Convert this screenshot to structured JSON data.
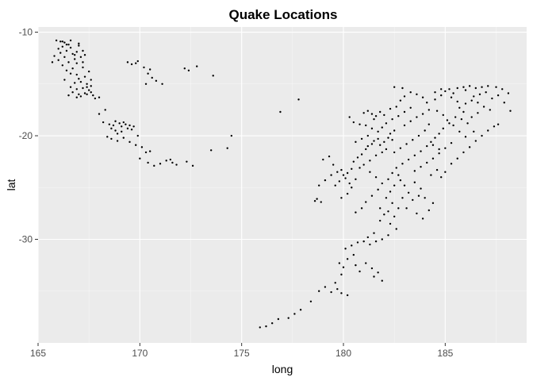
{
  "chart_data": {
    "type": "scatter",
    "title": "Quake Locations",
    "xlabel": "long",
    "ylabel": "lat",
    "xlim": [
      165,
      189
    ],
    "ylim": [
      -40,
      -9.5
    ],
    "x_ticks": [
      165,
      170,
      175,
      180,
      185
    ],
    "y_ticks": [
      -10,
      -20,
      -30
    ],
    "x_tick_labels": [
      "165",
      "170",
      "175",
      "180",
      "185"
    ],
    "y_tick_labels": [
      "-10",
      "-20",
      "-30"
    ],
    "grid": true,
    "legend": "none",
    "colors": {
      "panel": "#ebebeb",
      "point": "#000000",
      "grid": "#ffffff"
    },
    "points": [
      [
        165.9,
        -10.8
      ],
      [
        166.1,
        -10.9
      ],
      [
        166.3,
        -11.0
      ],
      [
        166.5,
        -11.2
      ],
      [
        166.2,
        -11.4
      ],
      [
        166.0,
        -11.6
      ],
      [
        166.6,
        -11.5
      ],
      [
        166.4,
        -11.8
      ],
      [
        166.1,
        -12.0
      ],
      [
        166.7,
        -12.1
      ],
      [
        165.8,
        -12.3
      ],
      [
        166.3,
        -12.4
      ],
      [
        166.0,
        -12.7
      ],
      [
        166.8,
        -12.6
      ],
      [
        166.5,
        -12.9
      ],
      [
        165.7,
        -12.9
      ],
      [
        166.2,
        -13.2
      ],
      [
        166.9,
        -13.0
      ],
      [
        167.0,
        -11.3
      ],
      [
        166.9,
        -11.9
      ],
      [
        167.1,
        -12.4
      ],
      [
        167.2,
        -11.8
      ],
      [
        166.7,
        -13.5
      ],
      [
        166.4,
        -13.7
      ],
      [
        166.6,
        -14.0
      ],
      [
        166.9,
        -14.1
      ],
      [
        167.2,
        -13.4
      ],
      [
        167.0,
        -14.5
      ],
      [
        166.3,
        -14.6
      ],
      [
        166.8,
        -14.9
      ],
      [
        167.1,
        -14.8
      ],
      [
        167.3,
        -14.3
      ],
      [
        167.4,
        -15.0
      ],
      [
        166.6,
        -15.3
      ],
      [
        166.9,
        -15.5
      ],
      [
        167.2,
        -15.4
      ],
      [
        167.5,
        -15.6
      ],
      [
        167.6,
        -15.2
      ],
      [
        166.7,
        -15.8
      ],
      [
        167.0,
        -16.0
      ],
      [
        167.3,
        -15.9
      ],
      [
        167.7,
        -16.1
      ],
      [
        166.5,
        -16.1
      ],
      [
        167.8,
        -16.4
      ],
      [
        168.0,
        -16.3
      ],
      [
        168.0,
        -17.9
      ],
      [
        166.9,
        -16.3
      ],
      [
        167.1,
        -16.2
      ],
      [
        167.4,
        -16.0
      ],
      [
        167.6,
        -14.6
      ],
      [
        167.5,
        -13.8
      ],
      [
        167.2,
        -12.9
      ],
      [
        166.8,
        -12.2
      ],
      [
        166.4,
        -11.2
      ],
      [
        166.2,
        -10.9
      ],
      [
        166.6,
        -10.8
      ],
      [
        167.0,
        -11.1
      ],
      [
        167.3,
        -12.2
      ],
      [
        167.6,
        -15.8
      ],
      [
        167.4,
        -15.3
      ],
      [
        168.2,
        -18.7
      ],
      [
        168.5,
        -18.9
      ],
      [
        168.7,
        -19.0
      ],
      [
        168.6,
        -19.3
      ],
      [
        168.8,
        -19.5
      ],
      [
        169.0,
        -18.8
      ],
      [
        169.2,
        -18.7
      ],
      [
        168.9,
        -19.8
      ],
      [
        169.1,
        -19.1
      ],
      [
        169.3,
        -18.9
      ],
      [
        169.5,
        -19.0
      ],
      [
        169.4,
        -19.3
      ],
      [
        169.7,
        -19.1
      ],
      [
        168.4,
        -20.1
      ],
      [
        168.6,
        -20.3
      ],
      [
        168.9,
        -20.5
      ],
      [
        169.2,
        -20.2
      ],
      [
        169.5,
        -20.6
      ],
      [
        169.8,
        -20.9
      ],
      [
        170.1,
        -21.1
      ],
      [
        170.3,
        -21.6
      ],
      [
        170.5,
        -21.5
      ],
      [
        170.0,
        -22.2
      ],
      [
        170.4,
        -22.6
      ],
      [
        170.7,
        -22.9
      ],
      [
        171.0,
        -22.7
      ],
      [
        171.3,
        -22.4
      ],
      [
        171.5,
        -22.3
      ],
      [
        171.6,
        -22.6
      ],
      [
        171.8,
        -22.8
      ],
      [
        172.3,
        -22.5
      ],
      [
        172.6,
        -22.9
      ],
      [
        173.5,
        -21.4
      ],
      [
        174.3,
        -21.2
      ],
      [
        174.5,
        -20.0
      ],
      [
        168.3,
        -17.5
      ],
      [
        169.1,
        -19.6
      ],
      [
        169.6,
        -19.4
      ],
      [
        168.8,
        -18.6
      ],
      [
        169.9,
        -20.0
      ],
      [
        169.4,
        -12.9
      ],
      [
        169.6,
        -13.1
      ],
      [
        169.9,
        -12.8
      ],
      [
        169.8,
        -13.0
      ],
      [
        170.2,
        -13.4
      ],
      [
        170.5,
        -13.6
      ],
      [
        170.4,
        -14.0
      ],
      [
        170.8,
        -14.7
      ],
      [
        171.1,
        -15.0
      ],
      [
        172.2,
        -13.5
      ],
      [
        172.4,
        -13.7
      ],
      [
        172.8,
        -13.3
      ],
      [
        173.6,
        -14.2
      ],
      [
        170.3,
        -15.0
      ],
      [
        170.6,
        -14.4
      ],
      [
        176.9,
        -17.7
      ],
      [
        177.8,
        -16.5
      ],
      [
        178.6,
        -26.3
      ],
      [
        178.9,
        -26.4
      ],
      [
        178.7,
        -26.1
      ],
      [
        178.8,
        -24.8
      ],
      [
        179.1,
        -24.3
      ],
      [
        179.4,
        -23.8
      ],
      [
        179.7,
        -23.5
      ],
      [
        179.9,
        -23.3
      ],
      [
        180.0,
        -23.8
      ],
      [
        180.2,
        -23.6
      ],
      [
        179.8,
        -24.4
      ],
      [
        180.1,
        -24.1
      ],
      [
        179.6,
        -24.8
      ],
      [
        180.3,
        -24.6
      ],
      [
        180.4,
        -23.2
      ],
      [
        179.5,
        -22.8
      ],
      [
        180.5,
        -22.5
      ],
      [
        180.7,
        -22.1
      ],
      [
        180.9,
        -21.8
      ],
      [
        181.1,
        -21.3
      ],
      [
        181.2,
        -21.0
      ],
      [
        181.4,
        -20.8
      ],
      [
        181.5,
        -20.5
      ],
      [
        181.7,
        -20.3
      ],
      [
        181.8,
        -20.9
      ],
      [
        182.0,
        -20.6
      ],
      [
        182.2,
        -20.2
      ],
      [
        182.3,
        -19.8
      ],
      [
        182.5,
        -19.5
      ],
      [
        182.4,
        -20.4
      ],
      [
        182.1,
        -21.3
      ],
      [
        181.9,
        -21.6
      ],
      [
        181.6,
        -21.9
      ],
      [
        181.3,
        -22.4
      ],
      [
        181.0,
        -22.8
      ],
      [
        180.8,
        -23.1
      ],
      [
        180.6,
        -24.2
      ],
      [
        180.4,
        -25.0
      ],
      [
        180.2,
        -25.6
      ],
      [
        179.9,
        -26.0
      ],
      [
        179.3,
        -22.0
      ],
      [
        179.0,
        -22.3
      ],
      [
        181.0,
        -17.8
      ],
      [
        181.2,
        -17.6
      ],
      [
        181.4,
        -17.9
      ],
      [
        181.6,
        -18.1
      ],
      [
        181.8,
        -17.7
      ],
      [
        182.0,
        -18.0
      ],
      [
        181.5,
        -18.4
      ],
      [
        182.3,
        -17.4
      ],
      [
        182.6,
        -17.2
      ],
      [
        182.8,
        -16.6
      ],
      [
        183.0,
        -16.2
      ],
      [
        182.5,
        -15.3
      ],
      [
        182.9,
        -15.4
      ],
      [
        183.3,
        -15.8
      ],
      [
        183.6,
        -16.0
      ],
      [
        183.9,
        -16.3
      ],
      [
        184.1,
        -16.8
      ],
      [
        184.5,
        -16.5
      ],
      [
        184.8,
        -16.1
      ],
      [
        185.0,
        -15.7
      ],
      [
        185.2,
        -15.5
      ],
      [
        185.4,
        -15.9
      ],
      [
        185.6,
        -15.4
      ],
      [
        185.9,
        -15.3
      ],
      [
        186.2,
        -15.2
      ],
      [
        186.5,
        -15.4
      ],
      [
        186.8,
        -15.3
      ],
      [
        187.1,
        -15.2
      ],
      [
        187.5,
        -15.3
      ],
      [
        187.8,
        -15.5
      ],
      [
        188.1,
        -15.9
      ],
      [
        188.2,
        -17.6
      ],
      [
        187.6,
        -18.9
      ],
      [
        187.2,
        -17.5
      ],
      [
        186.9,
        -17.2
      ],
      [
        186.6,
        -16.8
      ],
      [
        186.3,
        -16.6
      ],
      [
        186.0,
        -16.9
      ],
      [
        185.7,
        -17.3
      ],
      [
        185.5,
        -18.2
      ],
      [
        185.2,
        -18.8
      ],
      [
        184.9,
        -19.3
      ],
      [
        184.7,
        -19.8
      ],
      [
        184.5,
        -20.2
      ],
      [
        184.3,
        -20.6
      ],
      [
        184.1,
        -21.0
      ],
      [
        183.8,
        -21.5
      ],
      [
        183.5,
        -21.9
      ],
      [
        183.2,
        -22.3
      ],
      [
        182.9,
        -22.7
      ],
      [
        182.6,
        -23.1
      ],
      [
        182.4,
        -23.6
      ],
      [
        182.2,
        -24.2
      ],
      [
        182.5,
        -24.8
      ],
      [
        182.3,
        -25.4
      ],
      [
        182.1,
        -26.0
      ],
      [
        182.4,
        -26.5
      ],
      [
        182.7,
        -27.0
      ],
      [
        182.2,
        -27.3
      ],
      [
        182.0,
        -27.6
      ],
      [
        182.5,
        -27.8
      ],
      [
        181.8,
        -28.2
      ],
      [
        182.3,
        -28.5
      ],
      [
        182.6,
        -29.0
      ],
      [
        181.5,
        -29.4
      ],
      [
        181.2,
        -29.8
      ],
      [
        181.0,
        -30.2
      ],
      [
        180.7,
        -30.3
      ],
      [
        180.4,
        -30.6
      ],
      [
        180.1,
        -30.9
      ],
      [
        181.3,
        -30.5
      ],
      [
        181.6,
        -30.2
      ],
      [
        181.9,
        -30.0
      ],
      [
        182.2,
        -29.6
      ],
      [
        180.5,
        -31.5
      ],
      [
        180.2,
        -31.9
      ],
      [
        179.8,
        -32.3
      ],
      [
        180.0,
        -32.7
      ],
      [
        180.6,
        -32.5
      ],
      [
        181.1,
        -32.3
      ],
      [
        181.4,
        -32.8
      ],
      [
        181.7,
        -33.2
      ],
      [
        181.9,
        -34.0
      ],
      [
        181.5,
        -33.6
      ],
      [
        180.8,
        -33.1
      ],
      [
        179.9,
        -33.4
      ],
      [
        179.6,
        -34.2
      ],
      [
        179.7,
        -34.8
      ],
      [
        179.9,
        -35.2
      ],
      [
        180.2,
        -35.4
      ],
      [
        179.4,
        -35.1
      ],
      [
        179.1,
        -34.6
      ],
      [
        178.8,
        -35.0
      ],
      [
        178.4,
        -36.0
      ],
      [
        177.9,
        -36.8
      ],
      [
        177.6,
        -37.2
      ],
      [
        177.3,
        -37.6
      ],
      [
        176.8,
        -37.7
      ],
      [
        176.5,
        -38.1
      ],
      [
        176.2,
        -38.4
      ],
      [
        175.9,
        -38.5
      ],
      [
        183.5,
        -24.5
      ],
      [
        183.8,
        -25.1
      ],
      [
        183.7,
        -25.8
      ],
      [
        183.4,
        -26.2
      ],
      [
        183.1,
        -27.0
      ],
      [
        183.6,
        -27.5
      ],
      [
        183.9,
        -28.0
      ],
      [
        184.2,
        -27.2
      ],
      [
        184.4,
        -26.5
      ],
      [
        184.0,
        -26.0
      ],
      [
        184.6,
        -23.3
      ],
      [
        184.3,
        -23.8
      ],
      [
        184.8,
        -24.0
      ],
      [
        185.0,
        -23.5
      ],
      [
        185.3,
        -22.7
      ],
      [
        185.6,
        -22.2
      ],
      [
        185.9,
        -21.6
      ],
      [
        186.2,
        -21.1
      ],
      [
        186.5,
        -20.5
      ],
      [
        186.8,
        -20.0
      ],
      [
        187.1,
        -19.5
      ],
      [
        187.4,
        -19.1
      ],
      [
        186.4,
        -19.6
      ],
      [
        186.1,
        -18.8
      ],
      [
        185.8,
        -18.4
      ],
      [
        184.2,
        -18.9
      ],
      [
        184.0,
        -19.5
      ],
      [
        183.7,
        -20.0
      ],
      [
        183.4,
        -20.4
      ],
      [
        183.1,
        -20.8
      ],
      [
        182.8,
        -21.2
      ],
      [
        182.5,
        -21.6
      ],
      [
        183.0,
        -19.0
      ],
      [
        183.3,
        -18.6
      ],
      [
        183.6,
        -18.2
      ],
      [
        183.9,
        -17.9
      ],
      [
        184.2,
        -17.5
      ],
      [
        184.6,
        -17.6
      ],
      [
        184.9,
        -18.0
      ],
      [
        185.1,
        -18.5
      ],
      [
        185.4,
        -19.0
      ],
      [
        185.7,
        -19.6
      ],
      [
        186.0,
        -20.1
      ],
      [
        185.3,
        -20.7
      ],
      [
        185.0,
        -21.2
      ],
      [
        184.7,
        -21.7
      ],
      [
        184.4,
        -22.2
      ],
      [
        184.1,
        -22.6
      ],
      [
        183.8,
        -23.0
      ],
      [
        183.5,
        -23.4
      ],
      [
        181.7,
        -19.6
      ],
      [
        181.4,
        -19.3
      ],
      [
        181.1,
        -19.0
      ],
      [
        180.8,
        -18.9
      ],
      [
        180.5,
        -18.7
      ],
      [
        180.3,
        -18.2
      ],
      [
        180.6,
        -20.6
      ],
      [
        180.9,
        -20.3
      ],
      [
        181.2,
        -20.0
      ],
      [
        181.9,
        -19.2
      ],
      [
        182.1,
        -18.8
      ],
      [
        182.4,
        -18.4
      ],
      [
        182.7,
        -18.1
      ],
      [
        183.0,
        -17.7
      ],
      [
        183.3,
        -17.3
      ],
      [
        181.3,
        -23.5
      ],
      [
        181.6,
        -24.0
      ],
      [
        181.9,
        -24.6
      ],
      [
        181.7,
        -25.2
      ],
      [
        181.4,
        -25.8
      ],
      [
        181.1,
        -26.4
      ],
      [
        180.9,
        -27.0
      ],
      [
        180.6,
        -27.4
      ],
      [
        181.8,
        -27.0
      ],
      [
        182.9,
        -26.0
      ],
      [
        183.2,
        -25.5
      ],
      [
        183.0,
        -24.8
      ],
      [
        182.8,
        -24.3
      ],
      [
        182.7,
        -23.8
      ],
      [
        184.5,
        -15.8
      ],
      [
        184.8,
        -15.5
      ],
      [
        185.3,
        -16.3
      ],
      [
        185.6,
        -16.7
      ],
      [
        186.0,
        -15.6
      ],
      [
        186.4,
        -16.2
      ],
      [
        186.7,
        -16.0
      ],
      [
        187.0,
        -15.8
      ],
      [
        187.3,
        -16.4
      ],
      [
        187.6,
        -16.1
      ],
      [
        187.9,
        -16.8
      ],
      [
        186.6,
        -17.8
      ],
      [
        186.3,
        -18.2
      ],
      [
        185.9,
        -17.7
      ],
      [
        184.4,
        -20.9
      ],
      [
        184.7,
        -21.3
      ]
    ]
  }
}
